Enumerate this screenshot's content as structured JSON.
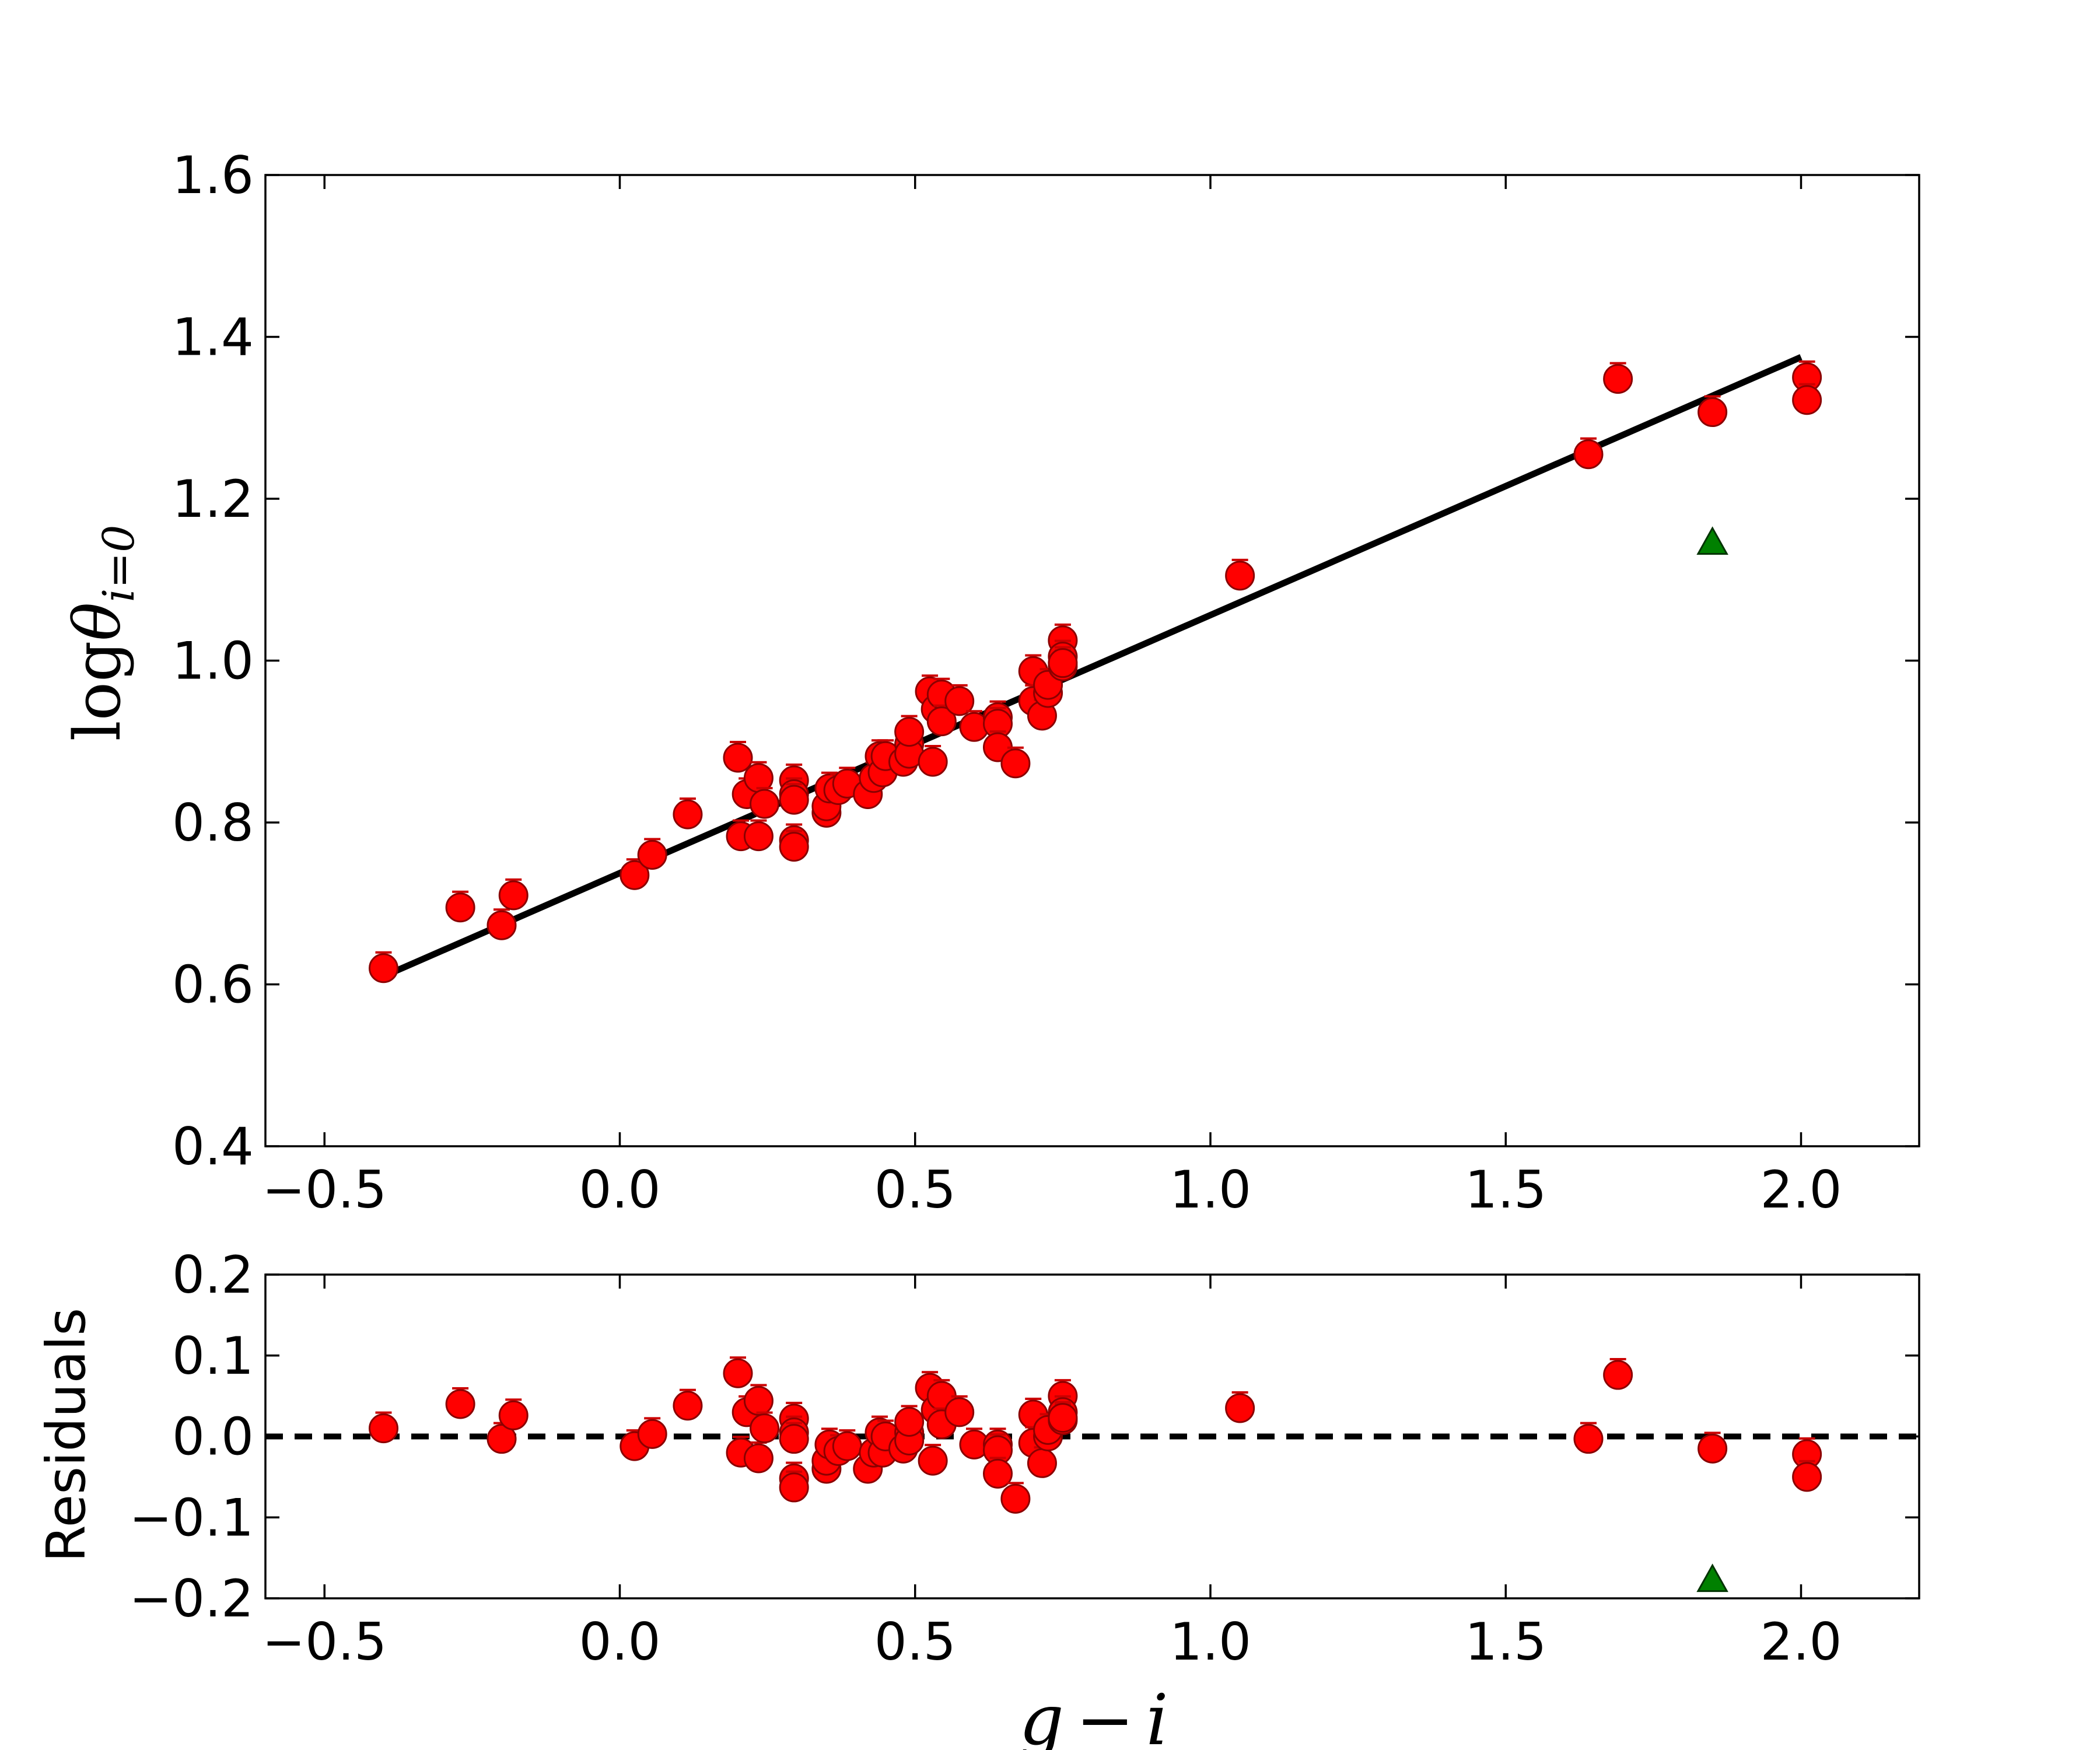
{
  "chart_data": [
    {
      "panel": "main",
      "type": "scatter",
      "ylabel": "logθ_{i=0}",
      "ylabel_main": "log",
      "ylabel_theta": "θ",
      "ylabel_sub": "i=0",
      "xlim": [
        -0.6,
        2.2
      ],
      "ylim": [
        0.4,
        1.6
      ],
      "xticks": [
        "−0.5",
        "0.0",
        "0.5",
        "1.0",
        "1.5",
        "2.0"
      ],
      "xtick_values": [
        -0.5,
        0.0,
        0.5,
        1.0,
        1.5,
        2.0
      ],
      "yticks": [
        "0.4",
        "0.6",
        "0.8",
        "1.0",
        "1.2",
        "1.4",
        "1.6"
      ],
      "ytick_values": [
        0.4,
        0.6,
        0.8,
        1.0,
        1.2,
        1.4,
        1.6
      ],
      "fit_line": {
        "x": [
          -0.4,
          2.0
        ],
        "y": [
          0.61,
          1.375
        ],
        "color": "#000000",
        "style": "solid"
      },
      "series": [
        {
          "marker": "circle",
          "color": "#ff0000",
          "points": [
            [
              -0.4,
              0.62
            ],
            [
              -0.27,
              0.695
            ],
            [
              -0.2,
              0.673
            ],
            [
              -0.18,
              0.71
            ],
            [
              0.025,
              0.735
            ],
            [
              0.055,
              0.76
            ],
            [
              0.115,
              0.81
            ],
            [
              0.2,
              0.88
            ],
            [
              0.205,
              0.783
            ],
            [
              0.215,
              0.835
            ],
            [
              0.235,
              0.855
            ],
            [
              0.235,
              0.783
            ],
            [
              0.245,
              0.823
            ],
            [
              0.295,
              0.852
            ],
            [
              0.295,
              0.835
            ],
            [
              0.295,
              0.828
            ],
            [
              0.295,
              0.778
            ],
            [
              0.295,
              0.77
            ],
            [
              0.35,
              0.812
            ],
            [
              0.35,
              0.82
            ],
            [
              0.355,
              0.842
            ],
            [
              0.37,
              0.84
            ],
            [
              0.385,
              0.848
            ],
            [
              0.42,
              0.835
            ],
            [
              0.43,
              0.855
            ],
            [
              0.44,
              0.882
            ],
            [
              0.445,
              0.862
            ],
            [
              0.45,
              0.882
            ],
            [
              0.48,
              0.875
            ],
            [
              0.49,
              0.897
            ],
            [
              0.49,
              0.885
            ],
            [
              0.49,
              0.912
            ],
            [
              0.525,
              0.962
            ],
            [
              0.53,
              0.875
            ],
            [
              0.535,
              0.94
            ],
            [
              0.545,
              0.958
            ],
            [
              0.545,
              0.925
            ],
            [
              0.575,
              0.95
            ],
            [
              0.6,
              0.918
            ],
            [
              0.64,
              0.93
            ],
            [
              0.64,
              0.922
            ],
            [
              0.64,
              0.893
            ],
            [
              0.67,
              0.873
            ],
            [
              0.7,
              0.987
            ],
            [
              0.7,
              0.95
            ],
            [
              0.715,
              0.932
            ],
            [
              0.725,
              0.96
            ],
            [
              0.725,
              0.97
            ],
            [
              0.75,
              1.025
            ],
            [
              0.75,
              1.005
            ],
            [
              0.75,
              0.993
            ],
            [
              0.75,
              0.997
            ],
            [
              1.05,
              1.105
            ],
            [
              1.64,
              1.255
            ],
            [
              1.69,
              1.348
            ],
            [
              1.85,
              1.307
            ],
            [
              2.01,
              1.35
            ],
            [
              2.01,
              1.322
            ]
          ]
        },
        {
          "marker": "triangle",
          "color": "#008000",
          "points": [
            [
              1.85,
              1.145
            ]
          ]
        }
      ]
    },
    {
      "panel": "residuals",
      "type": "scatter",
      "ylabel": "Residuals",
      "xlabel": "g − i",
      "xlabel_g": "g",
      "xlabel_minus": "−",
      "xlabel_i": "i",
      "xlim": [
        -0.6,
        2.2
      ],
      "ylim": [
        -0.2,
        0.2
      ],
      "xticks": [
        "−0.5",
        "0.0",
        "0.5",
        "1.0",
        "1.5",
        "2.0"
      ],
      "xtick_values": [
        -0.5,
        0.0,
        0.5,
        1.0,
        1.5,
        2.0
      ],
      "yticks": [
        "−0.2",
        "−0.1",
        "0.0",
        "0.1",
        "0.2"
      ],
      "ytick_values": [
        -0.2,
        -0.1,
        0.0,
        0.1,
        0.2
      ],
      "zero_line": {
        "y": 0.0,
        "color": "#000000",
        "style": "dashed"
      },
      "series": [
        {
          "marker": "circle",
          "color": "#ff0000",
          "points": [
            [
              -0.4,
              0.01
            ],
            [
              -0.27,
              0.04
            ],
            [
              -0.2,
              -0.003
            ],
            [
              -0.18,
              0.026
            ],
            [
              0.025,
              -0.012
            ],
            [
              0.055,
              0.003
            ],
            [
              0.115,
              0.038
            ],
            [
              0.2,
              0.078
            ],
            [
              0.205,
              -0.02
            ],
            [
              0.215,
              0.03
            ],
            [
              0.235,
              0.044
            ],
            [
              0.235,
              -0.027
            ],
            [
              0.245,
              0.01
            ],
            [
              0.295,
              0.022
            ],
            [
              0.295,
              0.005
            ],
            [
              0.295,
              -0.003
            ],
            [
              0.295,
              -0.052
            ],
            [
              0.295,
              -0.063
            ],
            [
              0.35,
              -0.04
            ],
            [
              0.35,
              -0.03
            ],
            [
              0.355,
              -0.01
            ],
            [
              0.37,
              -0.018
            ],
            [
              0.385,
              -0.012
            ],
            [
              0.42,
              -0.04
            ],
            [
              0.43,
              -0.02
            ],
            [
              0.44,
              0.005
            ],
            [
              0.445,
              -0.02
            ],
            [
              0.45,
              0.0
            ],
            [
              0.48,
              -0.015
            ],
            [
              0.49,
              0.005
            ],
            [
              0.49,
              -0.005
            ],
            [
              0.49,
              0.018
            ],
            [
              0.525,
              0.06
            ],
            [
              0.53,
              -0.03
            ],
            [
              0.535,
              0.033
            ],
            [
              0.545,
              0.05
            ],
            [
              0.545,
              0.015
            ],
            [
              0.575,
              0.03
            ],
            [
              0.6,
              -0.01
            ],
            [
              0.64,
              -0.01
            ],
            [
              0.64,
              -0.017
            ],
            [
              0.64,
              -0.046
            ],
            [
              0.67,
              -0.077
            ],
            [
              0.7,
              0.027
            ],
            [
              0.7,
              -0.008
            ],
            [
              0.715,
              -0.033
            ],
            [
              0.725,
              0.0
            ],
            [
              0.725,
              0.008
            ],
            [
              0.75,
              0.05
            ],
            [
              0.75,
              0.03
            ],
            [
              0.75,
              0.02
            ],
            [
              0.75,
              0.023
            ],
            [
              1.05,
              0.035
            ],
            [
              1.64,
              -0.003
            ],
            [
              1.69,
              0.076
            ],
            [
              1.85,
              -0.015
            ],
            [
              2.01,
              -0.022
            ],
            [
              2.01,
              -0.05
            ]
          ]
        },
        {
          "marker": "triangle",
          "color": "#008000",
          "points": [
            [
              1.85,
              -0.178
            ]
          ]
        }
      ]
    }
  ]
}
